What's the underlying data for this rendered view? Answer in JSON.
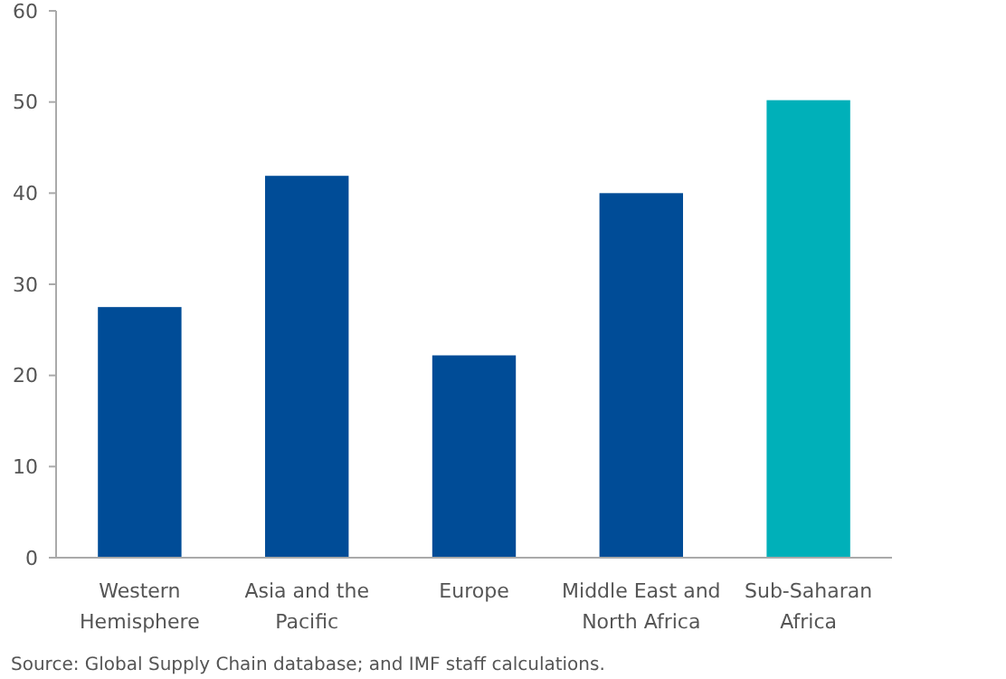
{
  "chart_data": {
    "type": "bar",
    "categories": [
      "Western Hemisphere",
      "Asia and the Pacific",
      "Europe",
      "Middle East and North Africa",
      "Sub-Saharan Africa"
    ],
    "values": [
      27.5,
      41.9,
      22.2,
      40.0,
      50.2
    ],
    "colors": [
      "#004c97",
      "#004c97",
      "#004c97",
      "#004c97",
      "#00b0b9"
    ],
    "ylim": [
      0,
      60
    ],
    "yticks": [
      0,
      10,
      20,
      30,
      40,
      50,
      60
    ],
    "grid": false,
    "annotations": [
      "Source: Global Supply Chain database; and IMF staff calculations."
    ]
  }
}
